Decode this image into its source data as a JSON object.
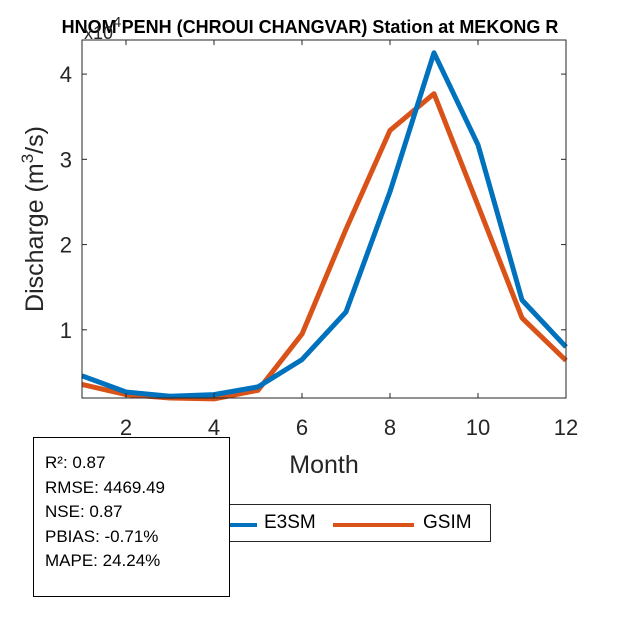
{
  "chart_data": {
    "type": "line",
    "title": "HNOM PENH (CHROUI CHANGVAR)  Station at  MEKONG  R",
    "xlabel": "Month",
    "ylabel_prefix": "Discharge (m",
    "ylabel_sup": "3",
    "ylabel_suffix": "/s)",
    "exponent_base": "x10",
    "exponent_power": "4",
    "x": [
      1,
      2,
      3,
      4,
      5,
      6,
      7,
      8,
      9,
      10,
      11,
      12
    ],
    "xlim": [
      1,
      12
    ],
    "ylim": [
      0.2,
      4.4
    ],
    "xticks": [
      2,
      4,
      6,
      8,
      10,
      12
    ],
    "yticks": [
      1,
      2,
      3,
      4
    ],
    "series": [
      {
        "name": "E3SM",
        "color": "#0072BD",
        "values": [
          0.46,
          0.27,
          0.22,
          0.24,
          0.33,
          0.65,
          1.21,
          2.62,
          4.25,
          3.17,
          1.35,
          0.8
        ]
      },
      {
        "name": "GSIM",
        "color": "#D95319",
        "values": [
          0.36,
          0.24,
          0.2,
          0.19,
          0.29,
          0.95,
          2.18,
          3.34,
          3.77,
          2.46,
          1.14,
          0.64
        ]
      }
    ]
  },
  "stats": {
    "r2": "R²: 0.87",
    "rmse": "RMSE: 4469.49",
    "nse": "NSE: 0.87",
    "pbias": "PBIAS: -0.71%",
    "mape": "MAPE: 24.24%"
  },
  "legend": {
    "e3sm_label": "E3SM",
    "gsim_label": "GSIM",
    "e3sm_color": "#0072BD",
    "gsim_color": "#D95319"
  }
}
